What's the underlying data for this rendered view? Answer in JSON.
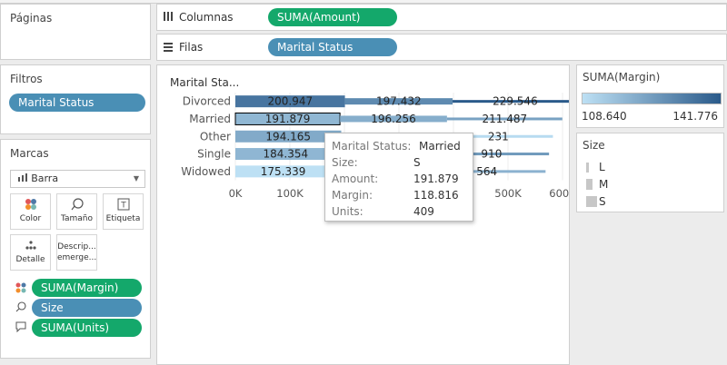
{
  "shelves": {
    "columnas_label": "Columnas",
    "columnas_pill": "SUMA(Amount)",
    "filas_label": "Filas",
    "filas_pill": "Marital Status"
  },
  "left": {
    "paginas_title": "Páginas",
    "filtros_title": "Filtros",
    "filtros_pill": "Marital Status",
    "marcas_title": "Marcas",
    "mark_type": "Barra",
    "buttons": {
      "color": "Color",
      "tamano": "Tamaño",
      "etiqueta": "Etiqueta",
      "detalle": "Detalle",
      "descripcion_1": "Descrip...",
      "descripcion_2": "emerge..."
    },
    "mark_pills": [
      "SUMA(Margin)",
      "Size",
      "SUMA(Units)"
    ]
  },
  "colors": {
    "green_pill": "#14a86b",
    "blue_pill": "#4a8fb5",
    "margin_low": "#bde0f4",
    "margin_high": "#2a5a8a"
  },
  "chart_data": {
    "type": "bar",
    "stacked": true,
    "row_header": "Marital Sta...",
    "categories": [
      "Divorced",
      "Married",
      "Other",
      "Single",
      "Widowed"
    ],
    "size_order": [
      "L",
      "M",
      "S"
    ],
    "x_ticks": [
      "0K",
      "100K",
      "200K",
      "300K",
      "400K",
      "500K",
      "600K"
    ],
    "xlim": [
      0,
      650000
    ],
    "segments": [
      {
        "category": "Divorced",
        "size": "S",
        "amount": 200947,
        "label": "200.947",
        "margin": 135000
      },
      {
        "category": "Divorced",
        "size": "M",
        "amount": 197432,
        "label": "197.432",
        "margin": 130000
      },
      {
        "category": "Divorced",
        "size": "L",
        "amount": 229546,
        "label": "229.546",
        "margin": 141776
      },
      {
        "category": "Married",
        "size": "S",
        "amount": 191879,
        "label": "191.879",
        "margin": 118816
      },
      {
        "category": "Married",
        "size": "M",
        "amount": 196256,
        "label": "196.256",
        "margin": 121000
      },
      {
        "category": "Married",
        "size": "L",
        "amount": 211487,
        "label": "211.487",
        "margin": 124000
      },
      {
        "category": "Other",
        "size": "S",
        "amount": 194165,
        "label": "194.165",
        "margin": 122000
      },
      {
        "category": "Other",
        "size": "M",
        "amount": 188000,
        "label": "",
        "margin": 116000
      },
      {
        "category": "Other",
        "size": "L",
        "amount": 200231,
        "label": "231",
        "margin": 110000
      },
      {
        "category": "Single",
        "size": "S",
        "amount": 184354,
        "label": "184.354",
        "margin": 119000
      },
      {
        "category": "Single",
        "size": "M",
        "amount": 180000,
        "label": "",
        "margin": 114000
      },
      {
        "category": "Single",
        "size": "L",
        "amount": 210910,
        "label": "910",
        "margin": 126000
      },
      {
        "category": "Widowed",
        "size": "S",
        "amount": 175339,
        "label": "175.339",
        "margin": 108640
      },
      {
        "category": "Widowed",
        "size": "M",
        "amount": 178000,
        "label": "",
        "margin": 113000
      },
      {
        "category": "Widowed",
        "size": "L",
        "amount": 215564,
        "label": "564",
        "margin": 120000
      }
    ]
  },
  "tooltip": {
    "marital_status_label": "Marital Status:",
    "marital_status_value": "Married",
    "size_label": "Size:",
    "size_value": "S",
    "amount_label": "Amount:",
    "amount_value": "191.879",
    "margin_label": "Margin:",
    "margin_value": "118.816",
    "units_label": "Units:",
    "units_value": "409"
  },
  "legend": {
    "color_title": "SUMA(Margin)",
    "color_min": "108.640",
    "color_max": "141.776",
    "size_title": "Size",
    "size_items": [
      "L",
      "M",
      "S"
    ]
  }
}
